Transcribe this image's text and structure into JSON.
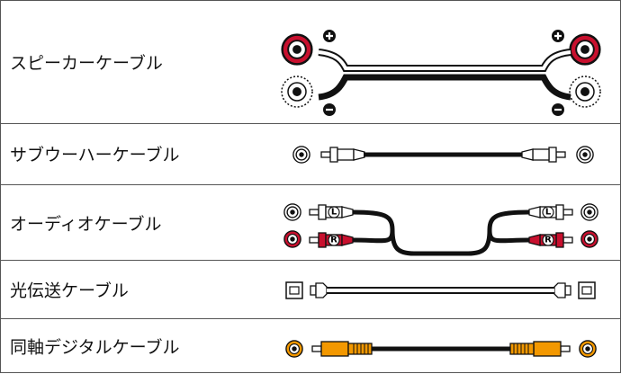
{
  "table": {
    "rows": [
      {
        "label": "スピーカーケーブル"
      },
      {
        "label": "サブウーハーケーブル"
      },
      {
        "label": "オーディオケーブル"
      },
      {
        "label": "光伝送ケーブル"
      },
      {
        "label": "同軸デジタルケーブル"
      }
    ]
  },
  "channels": {
    "left": "L",
    "right": "R"
  }
}
